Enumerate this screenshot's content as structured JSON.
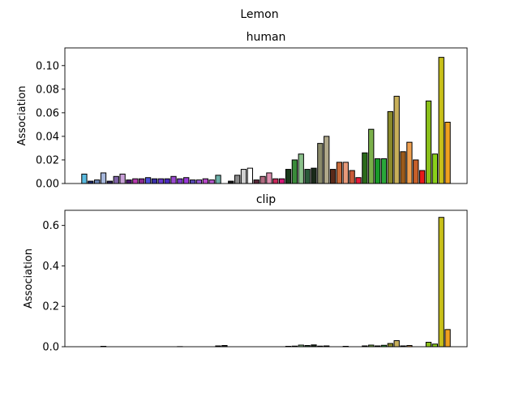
{
  "figure": {
    "suptitle": "Lemon"
  },
  "chart_data": [
    {
      "type": "bar",
      "title": "human",
      "xlabel": "",
      "ylabel": "Association",
      "ylim": [
        0,
        0.115
      ],
      "yticks": [
        0.0,
        0.02,
        0.04,
        0.06,
        0.08,
        0.1
      ],
      "ytick_labels": [
        "0.00",
        "0.02",
        "0.04",
        "0.06",
        "0.08",
        "0.10"
      ],
      "grid": false,
      "values": [
        0.008,
        0.002,
        0.003,
        0.009,
        0.002,
        0.006,
        0.008,
        0.003,
        0.004,
        0.004,
        0.005,
        0.004,
        0.004,
        0.004,
        0.006,
        0.004,
        0.005,
        0.003,
        0.003,
        0.004,
        0.003,
        0.007,
        0.0,
        0.002,
        0.007,
        0.012,
        0.013,
        0.003,
        0.006,
        0.009,
        0.004,
        0.004,
        0.012,
        0.02,
        0.025,
        0.012,
        0.013,
        0.034,
        0.04,
        0.012,
        0.018,
        0.018,
        0.011,
        0.005,
        0.026,
        0.046,
        0.021,
        0.021,
        0.061,
        0.074,
        0.027,
        0.035,
        0.02,
        0.011,
        0.07,
        0.025,
        0.107,
        0.052
      ],
      "colors": [
        "#5bbbe0",
        "#1c2a6e",
        "#6b85b5",
        "#a7b8dc",
        "#2a1f55",
        "#8064a8",
        "#c9a0d8",
        "#4a1870",
        "#b83bb0",
        "#8a2a90",
        "#4b4fd8",
        "#3a30a8",
        "#6a3ad0",
        "#4a2ac0",
        "#9a4ad0",
        "#7a3ac8",
        "#9a3ad8",
        "#5a4ab8",
        "#9a5ad8",
        "#b84ac8",
        "#b85ad0",
        "#6cb0a8",
        "#2a2a2a",
        "#1a1a1a",
        "#8a8a8a",
        "#d0d0d0",
        "#ffffff",
        "#5a2a3a",
        "#b06a80",
        "#e090b0",
        "#c8285a",
        "#d8187a",
        "#1a3a1a",
        "#3a8a3a",
        "#8ac08a",
        "#2a5a3a",
        "#1a2a1a",
        "#8a8a6a",
        "#b0a88a",
        "#5a2a1a",
        "#c86a3a",
        "#e89a7a",
        "#c85a3a",
        "#e81a3a",
        "#2a6a1a",
        "#7ab04a",
        "#1a9a2a",
        "#2aa83a",
        "#8a8a2a",
        "#c8b05a",
        "#9a5a1a",
        "#f0a050",
        "#c8602a",
        "#e81a1a",
        "#8ac01a",
        "#8ad01a",
        "#c8c01a",
        "#f0a020"
      ]
    },
    {
      "type": "bar",
      "title": "clip",
      "xlabel": "",
      "ylabel": "Association",
      "ylim": [
        0,
        0.675
      ],
      "yticks": [
        0.0,
        0.2,
        0.4,
        0.6
      ],
      "ytick_labels": [
        "0.0",
        "0.2",
        "0.4",
        "0.6"
      ],
      "grid": false,
      "values": [
        0.0,
        0.0,
        0.0,
        0.002,
        0.0,
        0.0,
        0.0,
        0.0,
        0.0,
        0.0,
        0.0,
        0.0,
        0.0,
        0.0,
        0.0,
        0.001,
        0.0,
        0.0,
        0.0,
        0.0,
        0.0,
        0.004,
        0.006,
        0.0,
        0.0,
        0.0,
        0.0,
        0.0,
        0.0,
        0.0,
        0.0,
        0.0,
        0.002,
        0.003,
        0.008,
        0.006,
        0.009,
        0.003,
        0.004,
        0.0,
        0.0,
        0.002,
        0.0,
        0.0,
        0.004,
        0.008,
        0.004,
        0.007,
        0.016,
        0.03,
        0.004,
        0.006,
        0.0,
        0.0,
        0.022,
        0.013,
        0.64,
        0.085
      ],
      "colors": [
        "#5bbbe0",
        "#1c2a6e",
        "#6b85b5",
        "#a7b8dc",
        "#2a1f55",
        "#8064a8",
        "#c9a0d8",
        "#4a1870",
        "#b83bb0",
        "#8a2a90",
        "#4b4fd8",
        "#3a30a8",
        "#6a3ad0",
        "#4a2ac0",
        "#9a4ad0",
        "#7a3ac8",
        "#9a3ad8",
        "#5a4ab8",
        "#9a5ad8",
        "#b84ac8",
        "#b85ad0",
        "#6cb0a8",
        "#2a2a2a",
        "#1a1a1a",
        "#8a8a8a",
        "#d0d0d0",
        "#ffffff",
        "#5a2a3a",
        "#b06a80",
        "#e090b0",
        "#c8285a",
        "#d8187a",
        "#1a3a1a",
        "#3a8a3a",
        "#8ac08a",
        "#2a5a3a",
        "#1a2a1a",
        "#8a8a6a",
        "#b0a88a",
        "#5a2a1a",
        "#c86a3a",
        "#e89a7a",
        "#c85a3a",
        "#e81a3a",
        "#2a6a1a",
        "#7ab04a",
        "#1a9a2a",
        "#2aa83a",
        "#8a8a2a",
        "#c8b05a",
        "#9a5a1a",
        "#f0a050",
        "#c8602a",
        "#e81a1a",
        "#8ac01a",
        "#8ad01a",
        "#c8c01a",
        "#f0a020"
      ]
    }
  ]
}
